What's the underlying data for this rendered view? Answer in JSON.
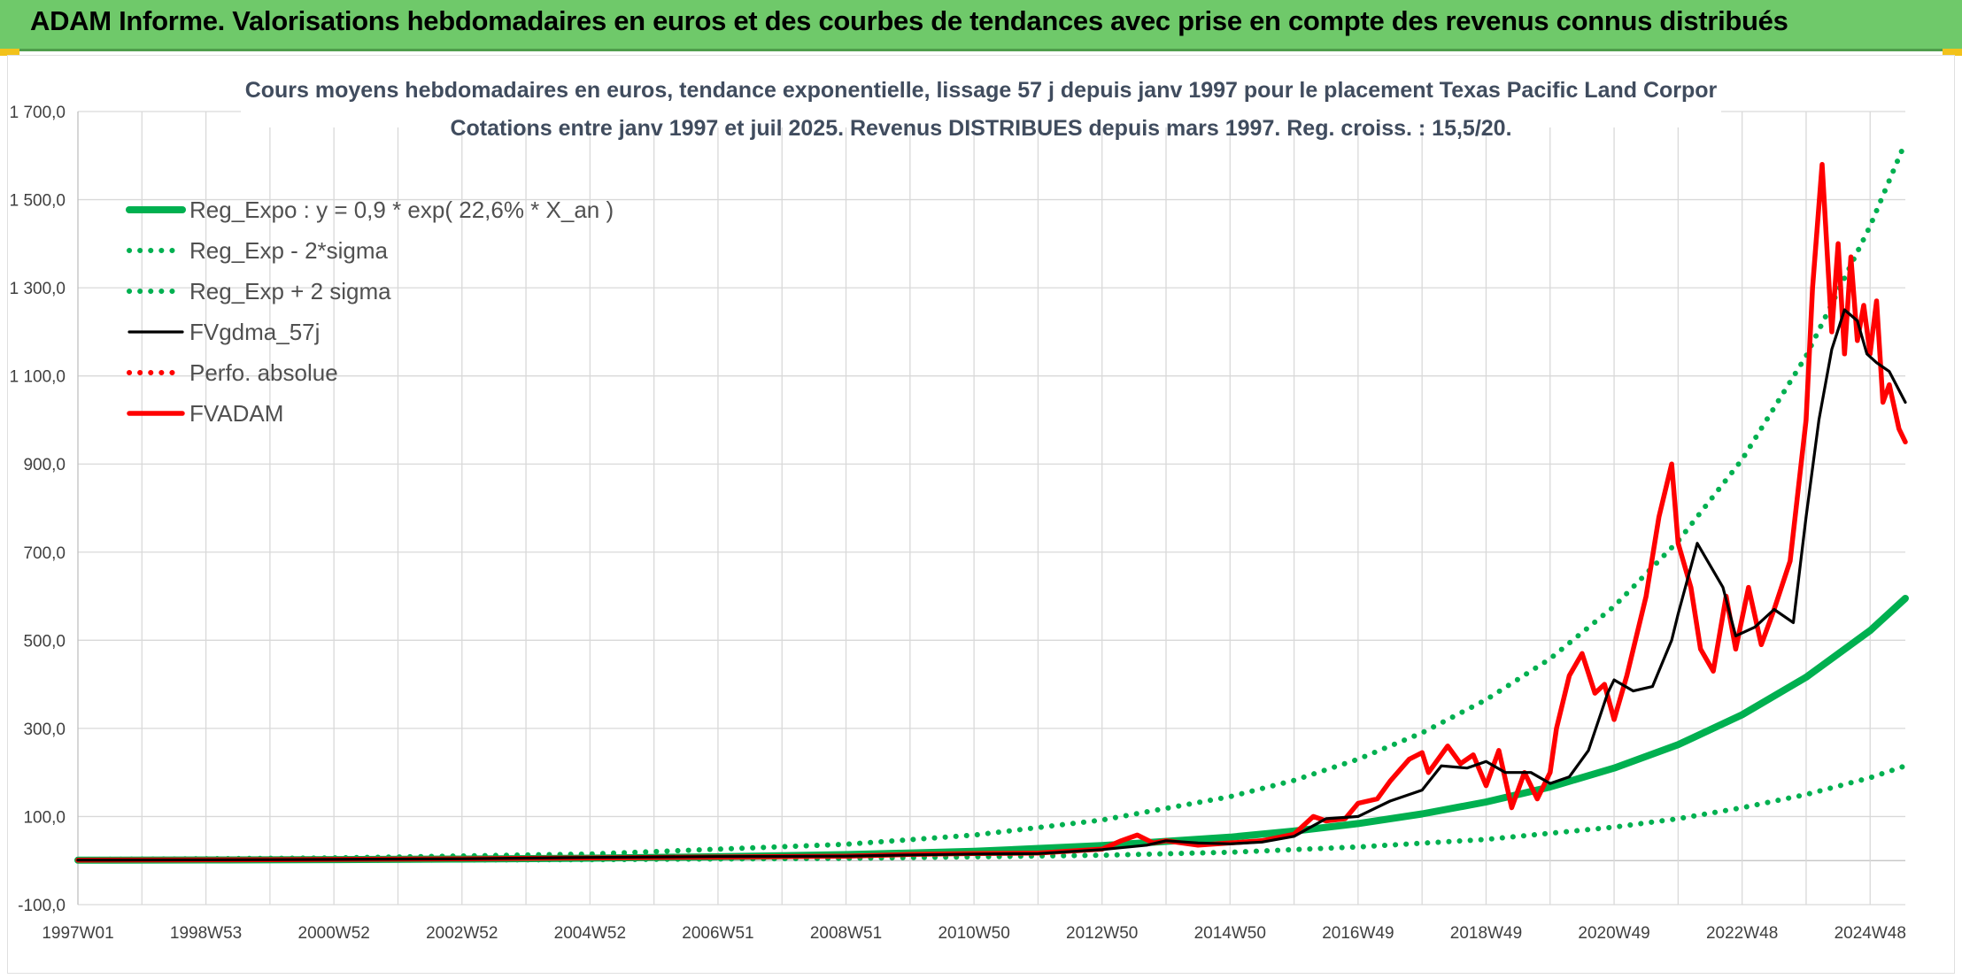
{
  "banner": {
    "title": "ADAM Informe. Valorisations hebdomadaires en euros et des courbes de tendances avec prise en compte des revenus connus distribués"
  },
  "colors": {
    "banner_bg": "#6fc96a",
    "reg_expo": "#00b050",
    "fvgdma": "#000000",
    "fvadam": "#ff0000",
    "perfo": "#ff0000",
    "grid": "#d9d9d9"
  },
  "chart_data": {
    "type": "line",
    "title_line1": "Cours moyens hebdomadaires en euros, tendance exponentielle, lissage 57 j depuis janv 1997 pour le placement Texas Pacific Land Corpor",
    "title_line2": "Cotations entre janv 1997 et juil 2025. Revenus DISTRIBUES depuis mars 1997. Reg. croiss. : 15,5/20.",
    "xlabel": "",
    "ylabel": "",
    "x_tick_labels": [
      "1997W01",
      "1998W53",
      "2000W52",
      "2002W52",
      "2004W52",
      "2006W51",
      "2008W51",
      "2010W50",
      "2012W50",
      "2014W50",
      "2016W49",
      "2018W49",
      "2020W49",
      "2022W48",
      "2024W48"
    ],
    "x_range_years": [
      1997.0,
      2025.55
    ],
    "ylim": [
      -100,
      1700
    ],
    "y_tick_labels": [
      "-100,0",
      "100,0",
      "300,0",
      "500,0",
      "700,0",
      "900,0",
      "1 100,0",
      "1 300,0",
      "1 500,0",
      "1 700,0"
    ],
    "grid": true,
    "legend_position": "top-left",
    "series": [
      {
        "name": "Reg_Expo : y = 0,9 * exp( 22,6% *  X_an )",
        "style": "solid-thick",
        "color": "#00b050",
        "x": [
          1997,
          1999,
          2001,
          2003,
          2005,
          2007,
          2009,
          2011,
          2013,
          2015,
          2016,
          2017,
          2018,
          2019,
          2020,
          2021,
          2022,
          2023,
          2024,
          2025,
          2025.55
        ],
        "y": [
          0.9,
          1.4,
          2.2,
          3.5,
          5.5,
          8.6,
          13.6,
          21,
          34,
          53,
          67,
          84,
          106,
          133,
          167,
          210,
          263,
          331,
          416,
          522,
          595
        ]
      },
      {
        "name": "Reg_Exp - 2*sigma",
        "style": "dotted",
        "color": "#00b050",
        "x": [
          1997,
          2001,
          2005,
          2009,
          2013,
          2015,
          2017,
          2019,
          2021,
          2022,
          2023,
          2024,
          2025,
          2025.55
        ],
        "y": [
          0.3,
          0.8,
          2,
          5,
          12,
          19,
          31,
          48,
          76,
          95,
          120,
          150,
          188,
          215
        ]
      },
      {
        "name": "Reg_Exp + 2 sigma",
        "style": "dotted",
        "color": "#00b050",
        "x": [
          1997,
          2001,
          2005,
          2009,
          2011,
          2013,
          2015,
          2016,
          2017,
          2018,
          2019,
          2020,
          2021,
          2022,
          2023,
          2024,
          2025,
          2025.55
        ],
        "y": [
          2.5,
          6,
          15,
          37,
          58,
          92,
          145,
          182,
          230,
          290,
          365,
          458,
          577,
          725,
          910,
          1145,
          1440,
          1630
        ]
      },
      {
        "name": "FVgdma_57j",
        "style": "solid",
        "color": "#000000",
        "x": [
          1997,
          2000,
          2003,
          2005,
          2007,
          2009,
          2010,
          2011,
          2012,
          2013,
          2013.7,
          2014,
          2014.5,
          2015,
          2015.5,
          2016,
          2016.5,
          2017,
          2017.5,
          2018,
          2018.3,
          2018.7,
          2019,
          2019.3,
          2019.7,
          2020,
          2020.3,
          2020.6,
          2020.9,
          2021,
          2021.3,
          2021.6,
          2021.9,
          2022,
          2022.3,
          2022.7,
          2022.9,
          2023.2,
          2023.5,
          2023.8,
          2024,
          2024.2,
          2024.4,
          2024.6,
          2024.8,
          2024.95,
          2025.1,
          2025.3,
          2025.55
        ],
        "y": [
          1,
          2,
          4,
          7,
          9,
          10,
          13,
          15,
          16,
          25,
          35,
          45,
          40,
          38,
          42,
          55,
          95,
          100,
          135,
          160,
          215,
          210,
          225,
          200,
          200,
          175,
          190,
          250,
          380,
          410,
          385,
          395,
          500,
          560,
          720,
          620,
          510,
          530,
          570,
          540,
          780,
          1000,
          1160,
          1250,
          1225,
          1150,
          1130,
          1110,
          1040
        ]
      },
      {
        "name": "Perfo. absolue",
        "style": "dotted",
        "color": "#ff0000",
        "x": [],
        "y": []
      },
      {
        "name": "FVADAM",
        "style": "solid-thick",
        "color": "#ff0000",
        "x": [
          1997,
          2000,
          2003,
          2005,
          2007,
          2009,
          2010,
          2011,
          2012,
          2013,
          2013.3,
          2013.55,
          2013.8,
          2014,
          2014.5,
          2015,
          2015.5,
          2016,
          2016.3,
          2016.5,
          2016.8,
          2017,
          2017.3,
          2017.5,
          2017.8,
          2018,
          2018.1,
          2018.4,
          2018.6,
          2018.8,
          2019.0,
          2019.2,
          2019.4,
          2019.6,
          2019.8,
          2020,
          2020.1,
          2020.3,
          2020.5,
          2020.7,
          2020.85,
          2021,
          2021.2,
          2021.5,
          2021.7,
          2021.9,
          2022,
          2022.2,
          2022.35,
          2022.55,
          2022.75,
          2022.9,
          2023.1,
          2023.3,
          2023.5,
          2023.75,
          2024,
          2024.1,
          2024.25,
          2024.4,
          2024.5,
          2024.6,
          2024.7,
          2024.8,
          2024.9,
          2025.0,
          2025.1,
          2025.2,
          2025.3,
          2025.45,
          2025.55
        ],
        "y": [
          1,
          2,
          4,
          6,
          8,
          10,
          14,
          16,
          17,
          26,
          45,
          58,
          40,
          45,
          35,
          40,
          45,
          60,
          100,
          90,
          95,
          130,
          140,
          180,
          230,
          245,
          200,
          260,
          220,
          240,
          170,
          250,
          120,
          200,
          140,
          200,
          300,
          420,
          470,
          380,
          400,
          320,
          420,
          600,
          780,
          900,
          720,
          620,
          480,
          430,
          600,
          480,
          620,
          490,
          570,
          680,
          1000,
          1300,
          1580,
          1200,
          1400,
          1150,
          1370,
          1180,
          1260,
          1150,
          1270,
          1040,
          1080,
          980,
          950
        ]
      }
    ]
  }
}
